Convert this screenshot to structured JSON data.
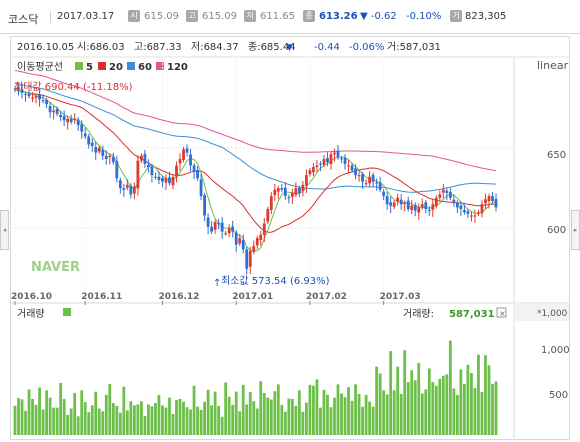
{
  "header": {
    "index_name": "코스닥",
    "date": "2017.03.17",
    "open": {
      "label": "시",
      "value": "615.09"
    },
    "high": {
      "label": "고",
      "value": "615.09"
    },
    "low": {
      "label": "저",
      "value": "611.65"
    },
    "close": {
      "label": "종",
      "value": "613.26"
    },
    "change": "▼ -0.62",
    "change_pct": "-0.10%",
    "volume": {
      "label": "거",
      "value": "823,305"
    }
  },
  "info_row": {
    "date": "2016.10.05",
    "open_text": "시:686.03",
    "high_text": "고:687.33",
    "low_text": "저:684.37",
    "close_text": "종:685.44",
    "arrow": "▼",
    "change": "-0.44",
    "change_pct": "-0.06%",
    "volume_text": "거:587,031"
  },
  "ma_legend": {
    "title": "이동평균선",
    "items": [
      {
        "label": "5",
        "color": "#6cc04a"
      },
      {
        "label": "20",
        "color": "#d9302a"
      },
      {
        "label": "60",
        "color": "#3b8fd4"
      },
      {
        "label": "120",
        "color": "#e0559a"
      }
    ]
  },
  "scale_label": "linear",
  "max_note": "최대값 690.44 (-11.18%)",
  "min_note": "최소값 573.54 (6.93%)",
  "watermark": "NAVER",
  "volume_panel": {
    "title": "거래량",
    "value_label": "거래량:",
    "value": "587,031",
    "unit": "*1,000",
    "close_icon": "close-icon"
  },
  "colors": {
    "up": "#e03a2e",
    "down": "#2e6ed6",
    "volume": "#6cc04a"
  },
  "chart_data": {
    "type": "candlestick",
    "x_ticks": [
      "2016.10",
      "2016.11",
      "2016.12",
      "2017.01",
      "2017.02",
      "2017.03"
    ],
    "price_ticks": [
      650,
      600
    ],
    "volume_ticks": [
      "1,000",
      "500"
    ],
    "price_range": [
      555,
      705
    ],
    "volume_range": [
      0,
      1250
    ],
    "max_point": {
      "date": "2016.10.05",
      "value": 690.44
    },
    "min_point": {
      "date": "2016.12.07",
      "value": 573.54
    },
    "close": [
      686,
      685,
      684,
      683,
      682,
      681,
      682,
      680,
      679,
      677,
      672,
      673,
      671,
      669,
      667,
      668,
      666,
      668,
      664,
      660,
      657,
      652,
      651,
      647,
      650,
      645,
      643,
      645,
      641,
      631,
      625,
      624,
      627,
      621,
      626,
      642,
      645,
      640,
      638,
      633,
      632,
      630,
      629,
      631,
      628,
      632,
      639,
      643,
      649,
      647,
      639,
      635,
      631,
      620,
      608,
      601,
      598,
      604,
      603,
      598,
      597,
      600,
      598,
      590,
      594,
      587,
      575,
      586,
      589,
      594,
      596,
      603,
      612,
      620,
      624,
      625,
      624,
      620,
      619,
      622,
      625,
      622,
      627,
      633,
      636,
      638,
      639,
      640,
      643,
      641,
      646,
      647,
      644,
      643,
      640,
      639,
      636,
      633,
      633,
      629,
      628,
      632,
      629,
      628,
      624,
      620,
      615,
      614,
      616,
      619,
      615,
      616,
      612,
      614,
      611,
      613,
      615,
      612,
      611,
      615,
      619,
      621,
      624,
      622,
      619,
      616,
      613,
      612,
      610,
      609,
      608,
      608,
      610,
      615,
      618,
      620,
      617,
      613
    ],
    "volume": [
      320,
      405,
      390,
      265,
      500,
      395,
      330,
      520,
      280,
      490,
      410,
      300,
      300,
      570,
      395,
      220,
      290,
      460,
      205,
      490,
      360,
      250,
      325,
      475,
      290,
      260,
      440,
      560,
      350,
      320,
      245,
      530,
      270,
      370,
      325,
      335,
      370,
      210,
      335,
      315,
      350,
      440,
      325,
      300,
      410,
      230,
      385,
      395,
      365,
      305,
      280,
      540,
      310,
      275,
      365,
      495,
      325,
      475,
      320,
      200,
      575,
      420,
      330,
      475,
      260,
      550,
      335,
      470,
      370,
      290,
      590,
      460,
      410,
      390,
      480,
      555,
      330,
      255,
      400,
      395,
      320,
      490,
      255,
      355,
      550,
      540,
      610,
      300,
      495,
      440,
      305,
      410,
      555,
      455,
      415,
      525,
      375,
      555,
      450,
      310,
      440,
      365,
      310,
      750,
      675,
      490,
      445,
      920,
      490,
      750,
      450,
      930,
      580,
      710,
      600,
      790,
      455,
      500,
      730,
      580,
      540,
      615,
      650,
      665,
      1035,
      510,
      440,
      720,
      560,
      770,
      680,
      515,
      880,
      470,
      875,
      765,
      560,
      587
    ]
  }
}
